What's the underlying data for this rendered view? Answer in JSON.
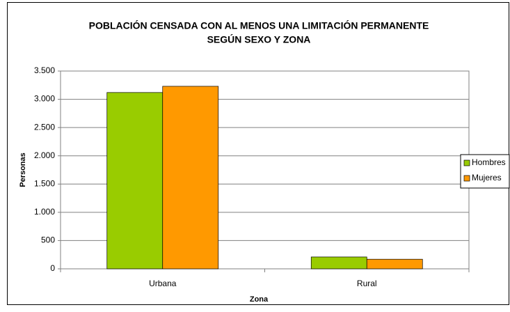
{
  "chart_data": {
    "type": "bar",
    "title": [
      "POBLACIÓN CENSADA CON AL MENOS UNA LIMITACIÓN PERMANENTE",
      "SEGÚN SEXO Y ZONA"
    ],
    "x_label": "Zona",
    "y_label": "Personas",
    "categories": [
      "Urbana",
      "Rural"
    ],
    "series": [
      {
        "name": "Hombres",
        "color": "#99cc00",
        "values": [
          3120,
          210
        ]
      },
      {
        "name": "Mujeres",
        "color": "#ff9900",
        "values": [
          3230,
          170
        ]
      }
    ],
    "ylim": [
      0,
      3500
    ],
    "yticks": [
      0,
      500,
      {
        "value": 1000,
        "label": "1.000"
      },
      {
        "value": 1500,
        "label": "1.500"
      },
      {
        "value": 2000,
        "label": "2.000"
      },
      {
        "value": 2500,
        "label": "2.500"
      },
      {
        "value": 3000,
        "label": "3.000"
      },
      {
        "value": 3500,
        "label": "3.500"
      }
    ],
    "grid": true,
    "legend": "right"
  }
}
